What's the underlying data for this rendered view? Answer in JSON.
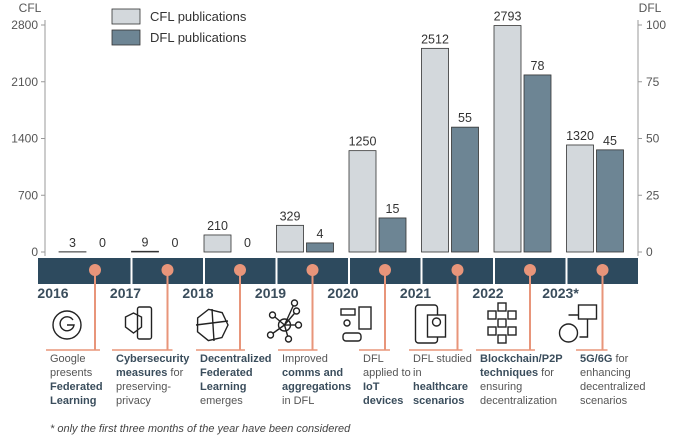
{
  "chart_data": {
    "type": "bar",
    "categories": [
      "2016",
      "2017",
      "2018",
      "2019",
      "2020",
      "2021",
      "2022",
      "2023*"
    ],
    "series": [
      {
        "name": "CFL publications",
        "axis": "left",
        "values": [
          3,
          9,
          210,
          329,
          1250,
          2512,
          2793,
          1320
        ],
        "color": "#d3d8dc"
      },
      {
        "name": "DFL publications",
        "axis": "right",
        "values": [
          0,
          0,
          0,
          4,
          15,
          55,
          78,
          45
        ],
        "color": "#6d8594"
      }
    ],
    "ylabel_left": "CFL",
    "ylabel_right": "DFL",
    "ylim_left": [
      0,
      2800
    ],
    "yticks_left": [
      "0",
      "700",
      "1400",
      "2100",
      "2800"
    ],
    "ylim_right": [
      0,
      100
    ],
    "yticks_right": [
      "0",
      "25",
      "50",
      "75",
      "100"
    ],
    "legend": "top-left"
  },
  "timeline": {
    "colors": {
      "band": "#2d4a5e",
      "dot": "#e8957a"
    },
    "events": [
      {
        "year": "2016",
        "icon": "google-icon",
        "html": "Google presents <b>Federated Learning</b>"
      },
      {
        "year": "2017",
        "icon": "shield-phone-icon",
        "html": "<b>Cybersecurity measures</b> for preserving-privacy"
      },
      {
        "year": "2018",
        "icon": "network-polygon-icon",
        "html": "<b>Decentralized Federated Learning</b> emerges"
      },
      {
        "year": "2019",
        "icon": "node-graph-icon",
        "html": "Improved <b>comms and aggregations</b> in DFL"
      },
      {
        "year": "2020",
        "icon": "iot-devices-icon",
        "html": "DFL applied to <b>IoT devices</b>"
      },
      {
        "year": "2021",
        "icon": "telehealth-icon",
        "html": "DFL studied in <b>healthcare scenarios</b>"
      },
      {
        "year": "2022",
        "icon": "blockchain-icon",
        "html": "<b>Blockchain/P2P techniques</b> for ensuring decentralization"
      },
      {
        "year": "2023*",
        "icon": "globe-network-icon",
        "html": "<b>5G/6G</b> for enhancing decentralized scenarios"
      }
    ]
  },
  "footnote": "* only the first three months of the year have been considered"
}
